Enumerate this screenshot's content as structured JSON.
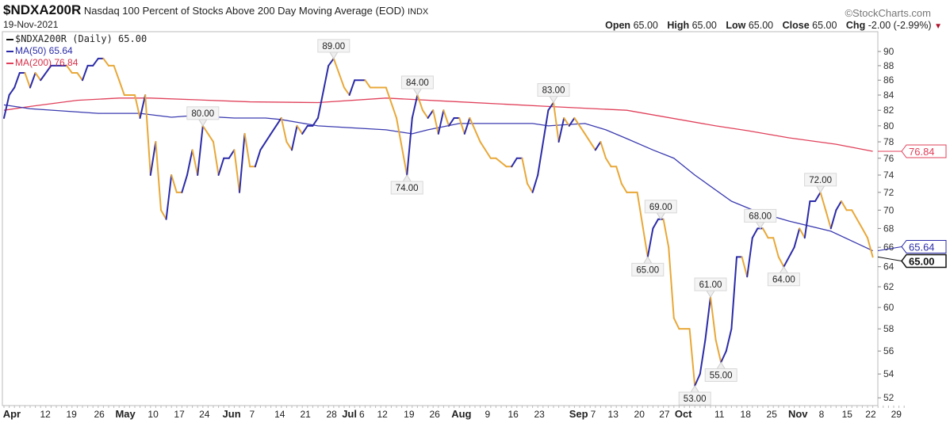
{
  "header": {
    "symbol": "$NDXA200R",
    "name": "Nasdaq 100 Percent of Stocks Above 200 Day Moving Average (EOD)",
    "exchange": "INDX",
    "date": "19-Nov-2021",
    "logo": "©StockCharts.com",
    "open_label": "Open",
    "open": "65.00",
    "high_label": "High",
    "high": "65.00",
    "low_label": "Low",
    "low": "65.00",
    "close_label": "Close",
    "close": "65.00",
    "chg_label": "Chg",
    "chg": "-2.00 (-2.99%)",
    "chg_icon": "triangle-down"
  },
  "legend": {
    "price": "$NDXA200R (Daily) 65.00",
    "ma50": "MA(50) 65.64",
    "ma200": "MA(200) 76.84"
  },
  "colors": {
    "up": "#2b2ba8",
    "down": "#e8a838",
    "ma50": "#3a3ab0",
    "ma200": "#e0405a"
  },
  "chart_data": {
    "type": "line",
    "title": "$NDXA200R Nasdaq 100 Percent of Stocks Above 200 Day Moving Average (EOD)",
    "x_units": "trading days since 1-Apr-2021",
    "y_scale": "log",
    "ylim": [
      51,
      92
    ],
    "y_ticks": [
      52,
      54,
      56,
      58,
      60,
      62,
      64,
      66,
      68,
      70,
      72,
      74,
      76,
      78,
      80,
      82,
      84,
      86,
      88,
      90
    ],
    "x_ticks": [
      {
        "d": 1.5,
        "label": "Apr",
        "bold": true
      },
      {
        "d": 7.9,
        "label": "12"
      },
      {
        "d": 12.9,
        "label": "19"
      },
      {
        "d": 18.2,
        "label": "26"
      },
      {
        "d": 23.2,
        "label": "May",
        "bold": true
      },
      {
        "d": 28.5,
        "label": "10"
      },
      {
        "d": 33.5,
        "label": "17"
      },
      {
        "d": 38.3,
        "label": "24"
      },
      {
        "d": 43.5,
        "label": "Jun",
        "bold": true
      },
      {
        "d": 47.4,
        "label": "7"
      },
      {
        "d": 52.7,
        "label": "14"
      },
      {
        "d": 57.6,
        "label": "21"
      },
      {
        "d": 62.6,
        "label": "28"
      },
      {
        "d": 66,
        "label": "Jul",
        "bold": true
      },
      {
        "d": 67.2,
        "label": "6"
      },
      {
        "d": 72.3,
        "label": "12"
      },
      {
        "d": 77.4,
        "label": "19"
      },
      {
        "d": 82.3,
        "label": "26"
      },
      {
        "d": 87.4,
        "label": "Aug",
        "bold": true
      },
      {
        "d": 92.4,
        "label": "9"
      },
      {
        "d": 97.3,
        "label": "16"
      },
      {
        "d": 102.3,
        "label": "23"
      },
      {
        "d": 109.8,
        "label": "Sep",
        "bold": true
      },
      {
        "d": 112.3,
        "label": "7"
      },
      {
        "d": 116.4,
        "label": "13"
      },
      {
        "d": 121.4,
        "label": "20"
      },
      {
        "d": 126.2,
        "label": "27"
      },
      {
        "d": 129.8,
        "label": "Oct",
        "bold": true
      },
      {
        "d": 136.7,
        "label": "11"
      },
      {
        "d": 141.7,
        "label": "18"
      },
      {
        "d": 146.7,
        "label": "25"
      },
      {
        "d": 151.7,
        "label": "Nov",
        "bold": true
      },
      {
        "d": 156.2,
        "label": "8"
      },
      {
        "d": 161.1,
        "label": "15"
      },
      {
        "d": 165.6,
        "label": "22"
      },
      {
        "d": 170.5,
        "label": "29"
      }
    ],
    "series": [
      {
        "name": "$NDXA200R",
        "points": [
          [
            0,
            81
          ],
          [
            1,
            84
          ],
          [
            2,
            85
          ],
          [
            3,
            87
          ],
          [
            4,
            87
          ],
          [
            5,
            85
          ],
          [
            6,
            87
          ],
          [
            7,
            86
          ],
          [
            9,
            88
          ],
          [
            11,
            88
          ],
          [
            12,
            88
          ],
          [
            13,
            87
          ],
          [
            14,
            87
          ],
          [
            15,
            86
          ],
          [
            16,
            88
          ],
          [
            17,
            88
          ],
          [
            18,
            89
          ],
          [
            19,
            89
          ],
          [
            20,
            88
          ],
          [
            21,
            88
          ],
          [
            22,
            86
          ],
          [
            23,
            84
          ],
          [
            24,
            84
          ],
          [
            25,
            84
          ],
          [
            26,
            81
          ],
          [
            27,
            84
          ],
          [
            28,
            74
          ],
          [
            29,
            78
          ],
          [
            30,
            70
          ],
          [
            31,
            69
          ],
          [
            32,
            74
          ],
          [
            33,
            72
          ],
          [
            34,
            72
          ],
          [
            35,
            74
          ],
          [
            36,
            77
          ],
          [
            37,
            74
          ],
          [
            38,
            80
          ],
          [
            39,
            79
          ],
          [
            40,
            78
          ],
          [
            41,
            74
          ],
          [
            42,
            76
          ],
          [
            43,
            76
          ],
          [
            44,
            77
          ],
          [
            45,
            72
          ],
          [
            46,
            79
          ],
          [
            47,
            75
          ],
          [
            48,
            75
          ],
          [
            49,
            77
          ],
          [
            51,
            79
          ],
          [
            53,
            81
          ],
          [
            54,
            78
          ],
          [
            55,
            77
          ],
          [
            56,
            80
          ],
          [
            57,
            79
          ],
          [
            58,
            80
          ],
          [
            59,
            80
          ],
          [
            60,
            81
          ],
          [
            62,
            88
          ],
          [
            63,
            89
          ],
          [
            65,
            85
          ],
          [
            66,
            84
          ],
          [
            67,
            86
          ],
          [
            69,
            86
          ],
          [
            70,
            85
          ],
          [
            73,
            85
          ],
          [
            75,
            81
          ],
          [
            77,
            74
          ],
          [
            78,
            81
          ],
          [
            79,
            84
          ],
          [
            80,
            82
          ],
          [
            81,
            81
          ],
          [
            82,
            82
          ],
          [
            83,
            79
          ],
          [
            84,
            82
          ],
          [
            85,
            80
          ],
          [
            86,
            81
          ],
          [
            87,
            81
          ],
          [
            88,
            79
          ],
          [
            89,
            81
          ],
          [
            91,
            78
          ],
          [
            93,
            76
          ],
          [
            94,
            76
          ],
          [
            96,
            75
          ],
          [
            97,
            75
          ],
          [
            98,
            76
          ],
          [
            99,
            76
          ],
          [
            100,
            73
          ],
          [
            101,
            72
          ],
          [
            102,
            74
          ],
          [
            104,
            82
          ],
          [
            105,
            83
          ],
          [
            106,
            78
          ],
          [
            107,
            81
          ],
          [
            108,
            80
          ],
          [
            109,
            81
          ],
          [
            111,
            79
          ],
          [
            113,
            77
          ],
          [
            114,
            78
          ],
          [
            115,
            76
          ],
          [
            116,
            75
          ],
          [
            117,
            75
          ],
          [
            118,
            73
          ],
          [
            119,
            72
          ],
          [
            121,
            72
          ],
          [
            123,
            65
          ],
          [
            124,
            68
          ],
          [
            125,
            69
          ],
          [
            126,
            69
          ],
          [
            127,
            66
          ],
          [
            128,
            59
          ],
          [
            129,
            58
          ],
          [
            131,
            58
          ],
          [
            132,
            53
          ],
          [
            133,
            54
          ],
          [
            134,
            57
          ],
          [
            135,
            61
          ],
          [
            136,
            57
          ],
          [
            137,
            55
          ],
          [
            138,
            56
          ],
          [
            139,
            58
          ],
          [
            140,
            65
          ],
          [
            141,
            65
          ],
          [
            142,
            63
          ],
          [
            143,
            67
          ],
          [
            144,
            68
          ],
          [
            145,
            68
          ],
          [
            146,
            67
          ],
          [
            147,
            67
          ],
          [
            148,
            65
          ],
          [
            149,
            64
          ],
          [
            151,
            66
          ],
          [
            152,
            68
          ],
          [
            153,
            67
          ],
          [
            154,
            71
          ],
          [
            155,
            71
          ],
          [
            156,
            72
          ],
          [
            157,
            70
          ],
          [
            158,
            68
          ],
          [
            159,
            70
          ],
          [
            160,
            71
          ],
          [
            161,
            70
          ],
          [
            162,
            70
          ],
          [
            164,
            68
          ],
          [
            165,
            67
          ],
          [
            166,
            65
          ]
        ]
      },
      {
        "name": "MA(50)",
        "points": [
          [
            0,
            82.7
          ],
          [
            5,
            82.2
          ],
          [
            18,
            81.6
          ],
          [
            26,
            81.6
          ],
          [
            32,
            81.1
          ],
          [
            36,
            81.3
          ],
          [
            44,
            81
          ],
          [
            50,
            81
          ],
          [
            53,
            80.8
          ],
          [
            60,
            80
          ],
          [
            73,
            79.5
          ],
          [
            78,
            79
          ],
          [
            81,
            79.5
          ],
          [
            87,
            80.3
          ],
          [
            101,
            80.3
          ],
          [
            104,
            80
          ],
          [
            111,
            80.3
          ],
          [
            115,
            79.5
          ],
          [
            119,
            78.4
          ],
          [
            124,
            77
          ],
          [
            128,
            76
          ],
          [
            132,
            74
          ],
          [
            139,
            71
          ],
          [
            144,
            69.8
          ],
          [
            150,
            68.8
          ],
          [
            158,
            67.7
          ],
          [
            166,
            65.64
          ]
        ]
      },
      {
        "name": "MA(200)",
        "points": [
          [
            0,
            82
          ],
          [
            5,
            82.5
          ],
          [
            14,
            83.3
          ],
          [
            22,
            83.6
          ],
          [
            28,
            83.6
          ],
          [
            47,
            83.1
          ],
          [
            60,
            83
          ],
          [
            73,
            83.6
          ],
          [
            87,
            83.1
          ],
          [
            104,
            82.5
          ],
          [
            119,
            82
          ],
          [
            136,
            80
          ],
          [
            142,
            79.4
          ],
          [
            150,
            78.5
          ],
          [
            159,
            77.7
          ],
          [
            166,
            76.84
          ]
        ]
      }
    ],
    "annotations": [
      {
        "d": 38,
        "v": 80,
        "label": "80.00",
        "pos": "above"
      },
      {
        "d": 63,
        "v": 89,
        "label": "89.00",
        "pos": "above"
      },
      {
        "d": 79,
        "v": 84,
        "label": "84.00",
        "pos": "above"
      },
      {
        "d": 77,
        "v": 74,
        "label": "74.00",
        "pos": "below"
      },
      {
        "d": 105,
        "v": 83,
        "label": "83.00",
        "pos": "above"
      },
      {
        "d": 123,
        "v": 65,
        "label": "65.00",
        "pos": "below"
      },
      {
        "d": 125.5,
        "v": 69,
        "label": "69.00",
        "pos": "above"
      },
      {
        "d": 132,
        "v": 53,
        "label": "53.00",
        "pos": "below"
      },
      {
        "d": 135,
        "v": 61,
        "label": "61.00",
        "pos": "above"
      },
      {
        "d": 137,
        "v": 55,
        "label": "55.00",
        "pos": "below"
      },
      {
        "d": 144.5,
        "v": 68,
        "label": "68.00",
        "pos": "above"
      },
      {
        "d": 149,
        "v": 64,
        "label": "64.00",
        "pos": "below"
      },
      {
        "d": 156,
        "v": 72,
        "label": "72.00",
        "pos": "above"
      }
    ],
    "axis_badges": [
      {
        "v": 76.84,
        "label": "76.84",
        "color": "#e0405a",
        "bold": false
      },
      {
        "v": 65.64,
        "label": "65.64",
        "color": "#2b2ba8",
        "bold": false
      },
      {
        "v": 65.0,
        "label": "65.00",
        "color": "#111111",
        "bold": true
      }
    ]
  }
}
